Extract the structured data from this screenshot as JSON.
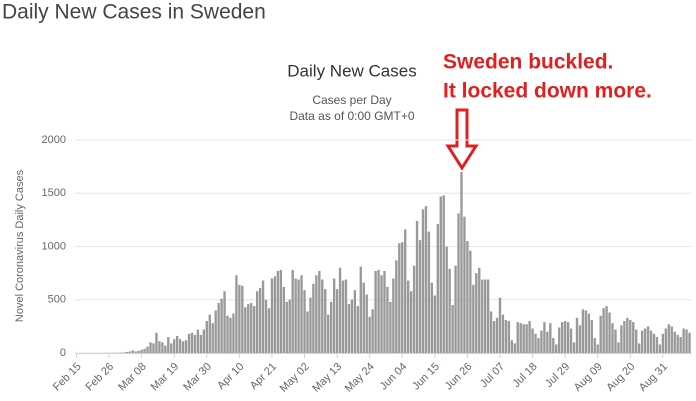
{
  "header": {
    "title": "Daily New Cases in Sweden"
  },
  "annotation": {
    "lines": [
      "Sweden buckled.",
      "It locked down more."
    ]
  },
  "chart_data": {
    "type": "bar",
    "title": "Daily New Cases",
    "subtitle": [
      "Cases per Day",
      "Data as of 0:00 GMT+0"
    ],
    "y_label": "Novel Coronavirus Daily Cases",
    "color": "#999999",
    "grid": true,
    "ylim": [
      0,
      2000
    ],
    "yticks": [
      0,
      500,
      1000,
      1500,
      2000
    ],
    "categories": [
      "Feb 15",
      null,
      null,
      null,
      null,
      null,
      null,
      null,
      null,
      null,
      null,
      "Feb 26",
      null,
      null,
      null,
      null,
      null,
      null,
      null,
      null,
      null,
      null,
      "Mar 08",
      null,
      null,
      null,
      null,
      null,
      null,
      null,
      null,
      null,
      null,
      "Mar 19",
      null,
      null,
      null,
      null,
      null,
      null,
      null,
      null,
      null,
      null,
      "Mar 30",
      null,
      null,
      null,
      null,
      null,
      null,
      null,
      null,
      null,
      null,
      "Apr 10",
      null,
      null,
      null,
      null,
      null,
      null,
      null,
      null,
      null,
      null,
      "Apr 21",
      null,
      null,
      null,
      null,
      null,
      null,
      null,
      null,
      null,
      null,
      "May 02",
      null,
      null,
      null,
      null,
      null,
      null,
      null,
      null,
      null,
      null,
      "May 13",
      null,
      null,
      null,
      null,
      null,
      null,
      null,
      null,
      null,
      null,
      "May 24",
      null,
      null,
      null,
      null,
      null,
      null,
      null,
      null,
      null,
      null,
      "Jun 04",
      null,
      null,
      null,
      null,
      null,
      null,
      null,
      null,
      null,
      null,
      "Jun 15",
      null,
      null,
      null,
      null,
      null,
      null,
      null,
      null,
      null,
      null,
      "Jun 26",
      null,
      null,
      null,
      null,
      null,
      null,
      null,
      null,
      null,
      null,
      "Jul 07",
      null,
      null,
      null,
      null,
      null,
      null,
      null,
      null,
      null,
      null,
      "Jul 18",
      null,
      null,
      null,
      null,
      null,
      null,
      null,
      null,
      null,
      null,
      "Jul 29",
      null,
      null,
      null,
      null,
      null,
      null,
      null,
      null,
      null,
      null,
      "Aug 09",
      null,
      null,
      null,
      null,
      null,
      null,
      null,
      null,
      null,
      null,
      "Aug 20",
      null,
      null,
      null,
      null,
      null,
      null,
      null,
      null,
      null,
      null,
      "Aug 31",
      null,
      null,
      null,
      null,
      null,
      null,
      null,
      null,
      null
    ],
    "values": [
      0,
      0,
      0,
      0,
      0,
      0,
      0,
      0,
      0,
      0,
      1,
      0,
      1,
      2,
      1,
      3,
      4,
      10,
      14,
      25,
      15,
      20,
      30,
      40,
      60,
      100,
      90,
      190,
      110,
      100,
      70,
      150,
      90,
      130,
      160,
      130,
      110,
      120,
      180,
      190,
      170,
      220,
      170,
      220,
      300,
      360,
      280,
      400,
      470,
      510,
      580,
      350,
      330,
      370,
      730,
      640,
      630,
      430,
      460,
      470,
      440,
      580,
      610,
      680,
      500,
      420,
      700,
      720,
      770,
      780,
      620,
      480,
      500,
      780,
      700,
      690,
      730,
      590,
      390,
      520,
      650,
      730,
      770,
      690,
      600,
      360,
      480,
      700,
      600,
      800,
      680,
      690,
      460,
      500,
      590,
      440,
      810,
      660,
      550,
      340,
      410,
      770,
      780,
      730,
      770,
      620,
      480,
      700,
      870,
      1030,
      1040,
      1160,
      680,
      580,
      820,
      1240,
      1060,
      1350,
      1380,
      1140,
      660,
      540,
      1210,
      1470,
      1480,
      1000,
      790,
      450,
      820,
      1310,
      1700,
      1280,
      1050,
      960,
      640,
      750,
      800,
      690,
      690,
      690,
      390,
      300,
      330,
      520,
      360,
      310,
      300,
      120,
      90,
      290,
      280,
      270,
      270,
      300,
      230,
      180,
      140,
      210,
      290,
      200,
      280,
      140,
      80,
      240,
      290,
      300,
      290,
      230,
      100,
      330,
      260,
      410,
      400,
      370,
      310,
      140,
      80,
      350,
      420,
      440,
      380,
      280,
      220,
      100,
      260,
      300,
      330,
      310,
      290,
      220,
      90,
      210,
      230,
      250,
      210,
      180,
      150,
      80,
      180,
      230,
      270,
      250,
      200,
      170,
      150,
      230,
      220,
      190
    ]
  }
}
